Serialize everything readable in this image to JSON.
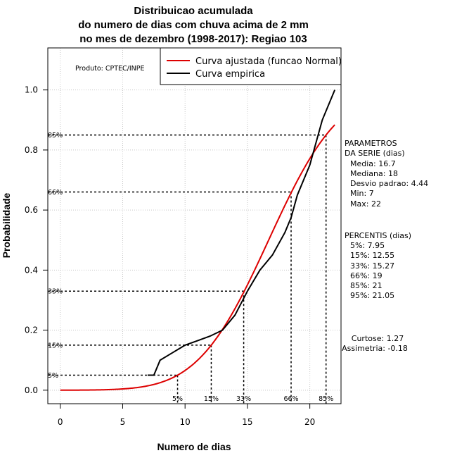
{
  "title_lines": [
    "Distribuicao acumulada",
    "do numero de dias com chuva acima de 2 mm",
    "no mes de dezembro (1998-2017): Regiao 103"
  ],
  "producer": "Produto: CPTEC/INPE",
  "legend": {
    "fitted": "Curva ajustada (funcao Normal)",
    "empirical": "Curva empirica"
  },
  "params_block": [
    "PARAMETROS",
    "DA SERIE (dias)",
    "Media: 16.7",
    "Mediana: 18",
    "Desvio padrao: 4.44",
    "Min: 7",
    "Max: 22"
  ],
  "percentis_block": [
    "PERCENTIS (dias)",
    "5%: 7.95",
    "15%: 12.55",
    "33%: 15.27",
    "66%: 19",
    "85%: 21",
    "95%: 21.05"
  ],
  "shape_block": [
    "Curtose: 1.27",
    "Assimetria: -0.18"
  ],
  "colors": {
    "fitted": "#dd0000",
    "empirical": "#000000",
    "grid": "#c8c8c8"
  },
  "chart_data": {
    "type": "line",
    "xlabel": "Numero de dias",
    "ylabel": "Probabilidade",
    "xlim": [
      -1,
      22.5
    ],
    "ylim": [
      -0.045,
      1.14
    ],
    "xticks": [
      0,
      5,
      10,
      15,
      20
    ],
    "yticks": [
      0.0,
      0.2,
      0.4,
      0.6,
      0.8,
      1.0
    ],
    "ytick_labels": [
      "0.0",
      "0.2",
      "0.4",
      "0.6",
      "0.8",
      "1.0"
    ],
    "grid": true,
    "legend_position": "top-right",
    "fitted_normal": {
      "mean": 16.7,
      "sd": 4.44,
      "x_range": [
        0,
        22
      ]
    },
    "series": [
      {
        "name": "Curva empirica",
        "x": [
          7,
          7.5,
          8,
          9,
          10,
          11,
          12,
          13,
          14,
          15,
          16,
          17,
          18,
          18.5,
          19,
          20,
          21,
          22
        ],
        "y": [
          0.05,
          0.05,
          0.1,
          0.125,
          0.15,
          0.165,
          0.18,
          0.2,
          0.25,
          0.33,
          0.4,
          0.45,
          0.525,
          0.575,
          0.65,
          0.75,
          0.9,
          1.0
        ]
      }
    ],
    "percentile_markers": [
      {
        "label": "5%",
        "x": 9.4,
        "y": 0.05
      },
      {
        "label": "15%",
        "x": 12.1,
        "y": 0.15
      },
      {
        "label": "33%",
        "x": 14.7,
        "y": 0.33
      },
      {
        "label": "66%",
        "x": 18.5,
        "y": 0.66
      },
      {
        "label": "85%",
        "x": 21.3,
        "y": 0.85
      }
    ]
  }
}
